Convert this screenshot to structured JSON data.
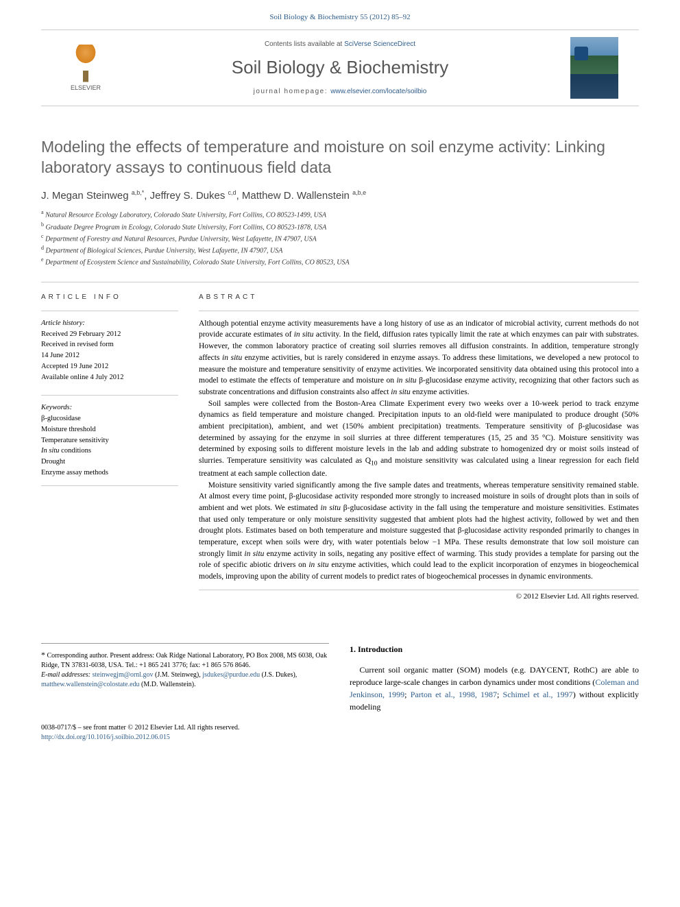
{
  "header": {
    "citation": "Soil Biology & Biochemistry 55 (2012) 85–92",
    "contents_prefix": "Contents lists available at ",
    "contents_link": "SciVerse ScienceDirect",
    "journal_name": "Soil Biology & Biochemistry",
    "homepage_prefix": "journal homepage: ",
    "homepage_url": "www.elsevier.com/locate/soilbio",
    "publisher": "ELSEVIER"
  },
  "article": {
    "title": "Modeling the effects of temperature and moisture on soil enzyme activity: Linking laboratory assays to continuous field data",
    "authors_html": "J. Megan Steinweg <sup>a,b,*</sup>, Jeffrey S. Dukes <sup>c,d</sup>, Matthew D. Wallenstein <sup>a,b,e</sup>",
    "affiliations": [
      {
        "sup": "a",
        "text": "Natural Resource Ecology Laboratory, Colorado State University, Fort Collins, CO 80523-1499, USA"
      },
      {
        "sup": "b",
        "text": "Graduate Degree Program in Ecology, Colorado State University, Fort Collins, CO 80523-1878, USA"
      },
      {
        "sup": "c",
        "text": "Department of Forestry and Natural Resources, Purdue University, West Lafayette, IN 47907, USA"
      },
      {
        "sup": "d",
        "text": "Department of Biological Sciences, Purdue University, West Lafayette, IN 47907, USA"
      },
      {
        "sup": "e",
        "text": "Department of Ecosystem Science and Sustainability, Colorado State University, Fort Collins, CO 80523, USA"
      }
    ]
  },
  "info": {
    "section_label": "ARTICLE INFO",
    "history_label": "Article history:",
    "history": [
      "Received 29 February 2012",
      "Received in revised form",
      "14 June 2012",
      "Accepted 19 June 2012",
      "Available online 4 July 2012"
    ],
    "keywords_label": "Keywords:",
    "keywords": [
      "β-glucosidase",
      "Moisture threshold",
      "Temperature sensitivity",
      "In situ conditions",
      "Drought",
      "Enzyme assay methods"
    ]
  },
  "abstract": {
    "section_label": "ABSTRACT",
    "paragraphs": [
      "Although potential enzyme activity measurements have a long history of use as an indicator of microbial activity, current methods do not provide accurate estimates of in situ activity. In the field, diffusion rates typically limit the rate at which enzymes can pair with substrates. However, the common laboratory practice of creating soil slurries removes all diffusion constraints. In addition, temperature strongly affects in situ enzyme activities, but is rarely considered in enzyme assays. To address these limitations, we developed a new protocol to measure the moisture and temperature sensitivity of enzyme activities. We incorporated sensitivity data obtained using this protocol into a model to estimate the effects of temperature and moisture on in situ β-glucosidase enzyme activity, recognizing that other factors such as substrate concentrations and diffusion constraints also affect in situ enzyme activities.",
      "Soil samples were collected from the Boston-Area Climate Experiment every two weeks over a 10-week period to track enzyme dynamics as field temperature and moisture changed. Precipitation inputs to an old-field were manipulated to produce drought (50% ambient precipitation), ambient, and wet (150% ambient precipitation) treatments. Temperature sensitivity of β-glucosidase was determined by assaying for the enzyme in soil slurries at three different temperatures (15, 25 and 35 °C). Moisture sensitivity was determined by exposing soils to different moisture levels in the lab and adding substrate to homogenized dry or moist soils instead of slurries. Temperature sensitivity was calculated as Q10 and moisture sensitivity was calculated using a linear regression for each field treatment at each sample collection date.",
      "Moisture sensitivity varied significantly among the five sample dates and treatments, whereas temperature sensitivity remained stable. At almost every time point, β-glucosidase activity responded more strongly to increased moisture in soils of drought plots than in soils of ambient and wet plots. We estimated in situ β-glucosidase activity in the fall using the temperature and moisture sensitivities. Estimates that used only temperature or only moisture sensitivity suggested that ambient plots had the highest activity, followed by wet and then drought plots. Estimates based on both temperature and moisture suggested that β-glucosidase activity responded primarily to changes in temperature, except when soils were dry, with water potentials below −1 MPa. These results demonstrate that low soil moisture can strongly limit in situ enzyme activity in soils, negating any positive effect of warming. This study provides a template for parsing out the role of specific abiotic drivers on in situ enzyme activities, which could lead to the explicit incorporation of enzymes in biogeochemical models, improving upon the ability of current models to predict rates of biogeochemical processes in dynamic environments."
    ],
    "copyright": "© 2012 Elsevier Ltd. All rights reserved."
  },
  "corresponding": {
    "star": "*",
    "label": "Corresponding author. Present address: Oak Ridge National Laboratory, PO Box 2008, MS 6038, Oak Ridge, TN 37831-6038, USA. Tel.: +1 865 241 3776; fax: +1 865 576 8646.",
    "email_label": "E-mail addresses:",
    "emails": [
      {
        "addr": "steinwegjm@ornl.gov",
        "who": "(J.M. Steinweg),"
      },
      {
        "addr": "jsdukes@purdue.edu",
        "who": "(J.S. Dukes),"
      },
      {
        "addr": "matthew.wallenstein@colostate.edu",
        "who": "(M.D. Wallenstein)."
      }
    ]
  },
  "intro": {
    "heading": "1. Introduction",
    "text_prefix": "Current soil organic matter (SOM) models (e.g. DAYCENT, RothC) are able to reproduce large-scale changes in carbon dynamics under most conditions (",
    "refs": [
      "Coleman and Jenkinson, 1999",
      "; ",
      "Parton et al., 1998, 1987",
      "; ",
      "Schimel et al., 1997"
    ],
    "text_suffix": ") without explicitly modeling"
  },
  "footer": {
    "issn_line": "0038-0717/$ – see front matter © 2012 Elsevier Ltd. All rights reserved.",
    "doi": "http://dx.doi.org/10.1016/j.soilbio.2012.06.015"
  },
  "colors": {
    "link": "#2e5c8a",
    "title_gray": "#666666",
    "text": "#000000",
    "border": "#cccccc"
  }
}
